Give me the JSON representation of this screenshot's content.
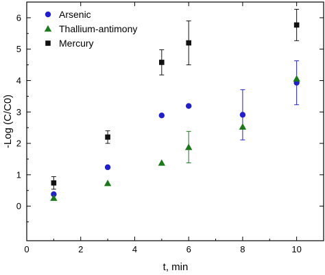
{
  "chart_data": {
    "type": "scatter",
    "title": "",
    "xlabel": "t, min",
    "ylabel": "-Log (C/C0)",
    "xlim": [
      0,
      11
    ],
    "ylim": [
      -1.1,
      6.5
    ],
    "xticks": [
      0,
      2,
      4,
      6,
      8,
      10
    ],
    "yticks": [
      0,
      1,
      2,
      3,
      4,
      5,
      6
    ],
    "grid": false,
    "legend_position": "top-left",
    "series": [
      {
        "name": "Arsenic",
        "marker": "circle",
        "color": "#1f1fd1",
        "x": [
          1,
          3,
          5,
          6,
          8,
          10
        ],
        "y": [
          0.38,
          1.24,
          2.89,
          3.19,
          2.91,
          3.93
        ],
        "err": [
          null,
          null,
          null,
          null,
          0.8,
          0.7
        ]
      },
      {
        "name": "Thallium-antimony",
        "marker": "triangle",
        "color": "#1a7a1a",
        "x": [
          1,
          3,
          5,
          6,
          8,
          10
        ],
        "y": [
          0.26,
          0.73,
          1.38,
          1.88,
          2.53,
          4.06
        ],
        "err": [
          null,
          null,
          null,
          0.5,
          null,
          null
        ]
      },
      {
        "name": "Mercury",
        "marker": "square",
        "color": "#111111",
        "x": [
          1,
          3,
          5,
          6,
          10
        ],
        "y": [
          0.74,
          2.2,
          4.58,
          5.2,
          5.77
        ],
        "err": [
          0.2,
          0.2,
          0.4,
          0.7,
          0.5
        ]
      }
    ]
  }
}
